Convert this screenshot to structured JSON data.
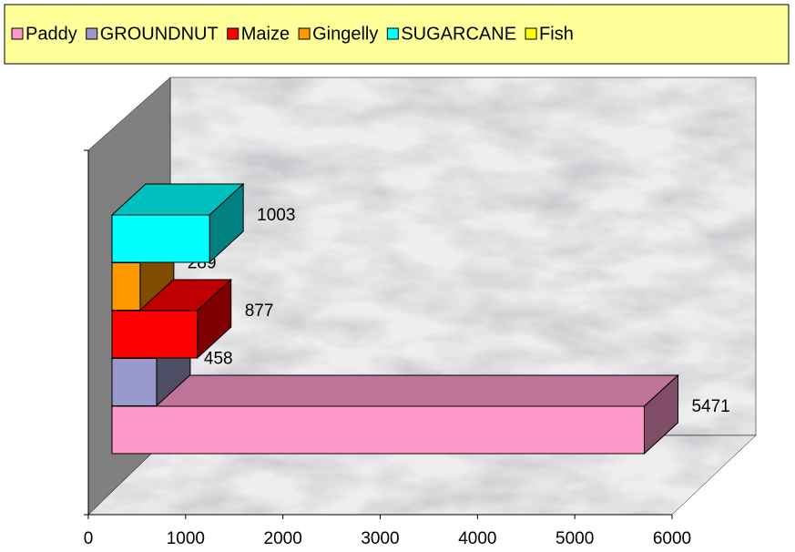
{
  "chart_data": {
    "type": "bar3d-horizontal",
    "series": [
      {
        "name": "Paddy",
        "color": "#ff99cc",
        "values": [
          5471
        ]
      },
      {
        "name": "GROUNDNUT",
        "color": "#9999cc",
        "values": [
          458
        ]
      },
      {
        "name": "Maize",
        "color": "#ff0000",
        "values": [
          877
        ]
      },
      {
        "name": "Gingelly",
        "color": "#ff9900",
        "values": [
          289
        ]
      },
      {
        "name": "SUGARCANE",
        "color": "#00ffff",
        "values": [
          1003
        ]
      },
      {
        "name": "Fish",
        "color": "#ffff00",
        "values": [
          null
        ]
      }
    ],
    "xlim": [
      0,
      6000
    ],
    "xticks": [
      0,
      1000,
      2000,
      3000,
      4000,
      5000,
      6000
    ],
    "legend": "top",
    "legend_color": "#ffff99"
  }
}
